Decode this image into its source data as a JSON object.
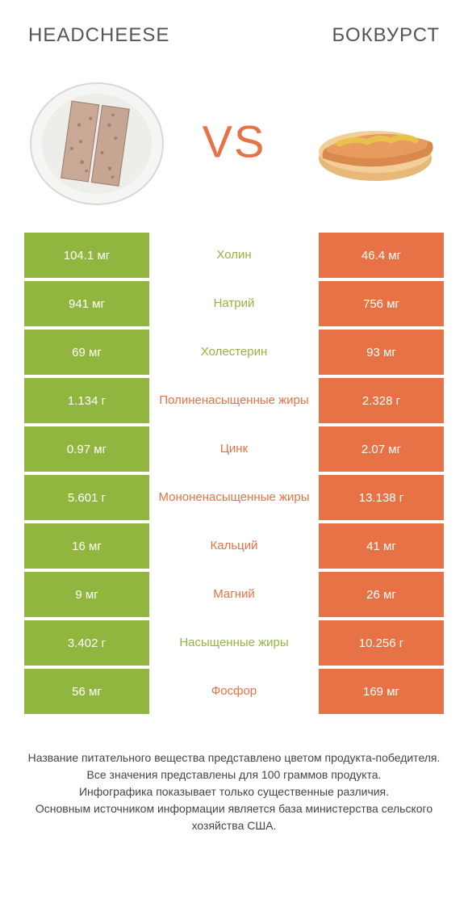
{
  "header": {
    "left": "HEADCHEESE",
    "right": "БОКВУРСТ"
  },
  "vs": "VS",
  "colors": {
    "green": "#91b63f",
    "orange": "#e67245",
    "white": "#ffffff"
  },
  "rows": [
    {
      "left": "104.1 мг",
      "mid": "Холин",
      "right": "46.4 мг",
      "winner": "left"
    },
    {
      "left": "941 мг",
      "mid": "Натрий",
      "right": "756 мг",
      "winner": "left"
    },
    {
      "left": "69 мг",
      "mid": "Холестерин",
      "right": "93 мг",
      "winner": "left"
    },
    {
      "left": "1.134 г",
      "mid": "Полиненасыщенные жиры",
      "right": "2.328 г",
      "winner": "right"
    },
    {
      "left": "0.97 мг",
      "mid": "Цинк",
      "right": "2.07 мг",
      "winner": "right"
    },
    {
      "left": "5.601 г",
      "mid": "Мононенасыщенные жиры",
      "right": "13.138 г",
      "winner": "right"
    },
    {
      "left": "16 мг",
      "mid": "Кальций",
      "right": "41 мг",
      "winner": "right"
    },
    {
      "left": "9 мг",
      "mid": "Магний",
      "right": "26 мг",
      "winner": "right"
    },
    {
      "left": "3.402 г",
      "mid": "Насыщенные жиры",
      "right": "10.256 г",
      "winner": "left"
    },
    {
      "left": "56 мг",
      "mid": "Фосфор",
      "right": "169 мг",
      "winner": "right"
    }
  ],
  "footer": {
    "l1": "Название питательного вещества представлено цветом продукта-победителя.",
    "l2": "Все значения представлены для 100 граммов продукта.",
    "l3": "Инфографика показывает только существенные различия.",
    "l4": "Основным источником информации является база министерства сельского хозяйства США."
  }
}
